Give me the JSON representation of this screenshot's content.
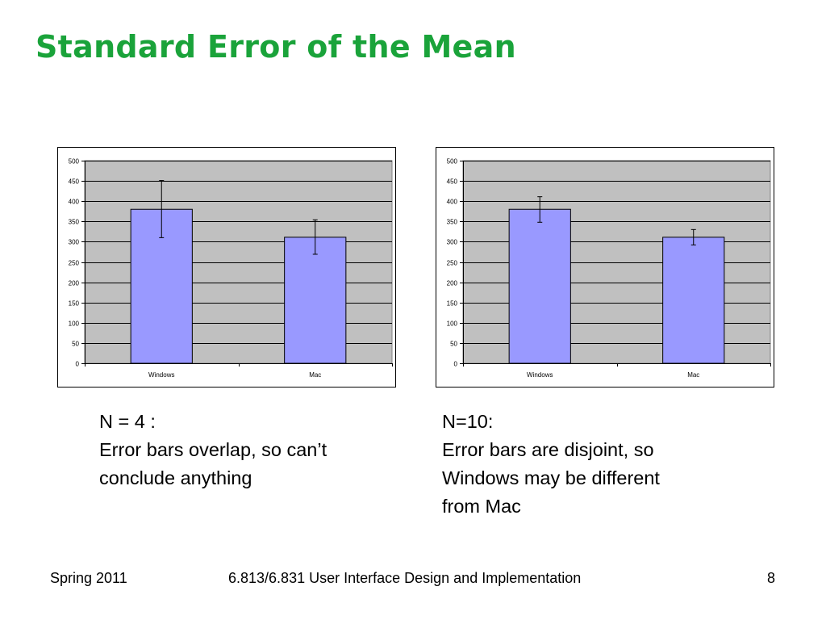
{
  "slide": {
    "title": "Standard Error of the Mean",
    "footer_left": "Spring 2011",
    "footer_center": "6.813/6.831 User Interface Design and Implementation",
    "footer_right": "8"
  },
  "captions": [
    {
      "lines": [
        "N = 4 :",
        "Error bars overlap, so can’t",
        "conclude anything"
      ]
    },
    {
      "lines": [
        "N=10:",
        "Error bars are disjoint, so",
        "Windows may be different",
        "from Mac"
      ]
    }
  ],
  "colors": {
    "title": "#1aa33a",
    "bar_fill": "#9999ff",
    "plot_area": "#c0c0c0",
    "gridline": "#000000"
  },
  "chart_data": [
    {
      "type": "bar",
      "categories": [
        "Windows",
        "Mac"
      ],
      "values": [
        380,
        311
      ],
      "error_bars": [
        {
          "low": 310,
          "high": 451
        },
        {
          "low": 269,
          "high": 354
        }
      ],
      "ylim": [
        0,
        500
      ],
      "yticks": [
        0,
        50,
        100,
        150,
        200,
        250,
        300,
        350,
        400,
        450,
        500
      ],
      "grid": true,
      "legend": "none",
      "title": "",
      "xlabel": "",
      "ylabel": ""
    },
    {
      "type": "bar",
      "categories": [
        "Windows",
        "Mac"
      ],
      "values": [
        380,
        311
      ],
      "error_bars": [
        {
          "low": 348,
          "high": 411
        },
        {
          "low": 292,
          "high": 330
        }
      ],
      "ylim": [
        0,
        500
      ],
      "yticks": [
        0,
        50,
        100,
        150,
        200,
        250,
        300,
        350,
        400,
        450,
        500
      ],
      "grid": true,
      "legend": "none",
      "title": "",
      "xlabel": "",
      "ylabel": ""
    }
  ]
}
